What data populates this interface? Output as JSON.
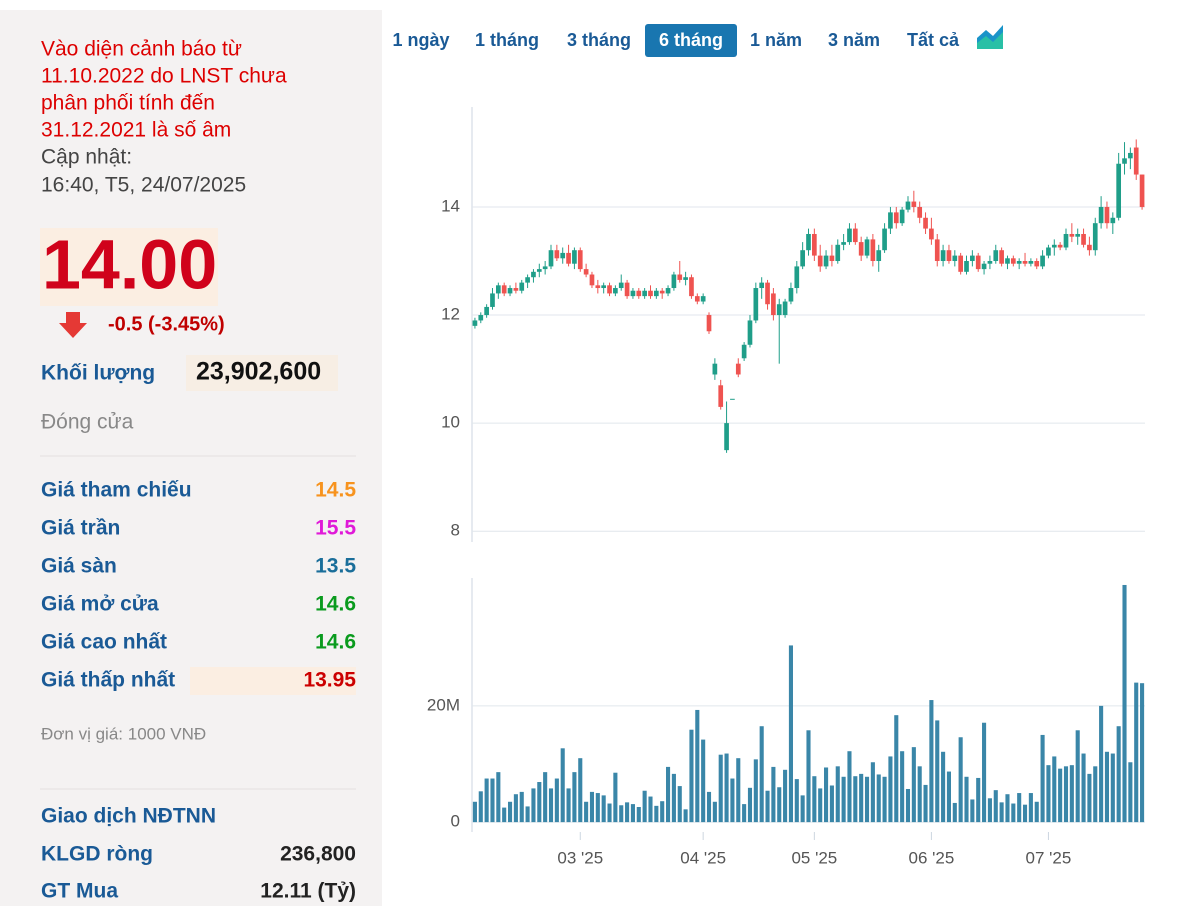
{
  "panel": {
    "warning_lines": [
      "Vào diện cảnh báo từ",
      "11.10.2022 do LNST chưa",
      "phân phối tính đến",
      "31.12.2021 là số âm"
    ],
    "update_label": "Cập nhật:",
    "update_time": "16:40, T5, 24/07/2025",
    "price": "14.00",
    "change": "-0.5 (-3.45%)",
    "volume_label": "Khối lượng",
    "volume_value": "23,902,600",
    "status": "Đóng cửa",
    "stats": [
      {
        "label": "Giá tham chiếu",
        "value": "14.5",
        "color": "#f7931e"
      },
      {
        "label": "Giá trần",
        "value": "15.5",
        "color": "#e01ad8"
      },
      {
        "label": "Giá sàn",
        "value": "13.5",
        "color": "#1a6e9a"
      },
      {
        "label": "Giá mở cửa",
        "value": "14.6",
        "color": "#0a9b1e"
      },
      {
        "label": "Giá cao nhất",
        "value": "14.6",
        "color": "#0a9b1e"
      },
      {
        "label": "Giá thấp nhất",
        "value": "13.95",
        "color": "#cc0000"
      }
    ],
    "unit_note": "Đơn vị giá: 1000 VNĐ",
    "foreign_title": "Giao dịch NĐTNN",
    "foreign_rows": [
      {
        "label": "KLGD ròng",
        "value": "236,800"
      },
      {
        "label": "GT Mua",
        "value": "12.11 (Tỷ)"
      }
    ]
  },
  "tabs": {
    "items": [
      "1 ngày",
      "1 tháng",
      "3 tháng",
      "6 tháng",
      "1 năm",
      "3 năm",
      "Tất cả"
    ],
    "active": "6 tháng"
  },
  "chart_data": {
    "type": "candlestick",
    "up_color": "#1f9e89",
    "down_color": "#ef5350",
    "grid": true,
    "xlim": [
      -0.5,
      114.5
    ],
    "xticks": [
      {
        "value": 18,
        "label": "03 '25"
      },
      {
        "value": 39,
        "label": "04 '25"
      },
      {
        "value": 58,
        "label": "05 '25"
      },
      {
        "value": 78,
        "label": "06 '25"
      },
      {
        "value": 98,
        "label": "07 '25"
      }
    ],
    "ylim": [
      7.8,
      15.85
    ],
    "yticks": [
      8,
      10,
      12,
      14
    ],
    "ohlc": [
      [
        11.8,
        11.95,
        11.75,
        11.9
      ],
      [
        11.9,
        12.05,
        11.85,
        12.0
      ],
      [
        12.0,
        12.2,
        11.95,
        12.15
      ],
      [
        12.15,
        12.5,
        12.1,
        12.4
      ],
      [
        12.4,
        12.6,
        12.3,
        12.55
      ],
      [
        12.55,
        12.6,
        12.35,
        12.4
      ],
      [
        12.4,
        12.55,
        12.35,
        12.5
      ],
      [
        12.5,
        12.6,
        12.4,
        12.45
      ],
      [
        12.45,
        12.65,
        12.4,
        12.6
      ],
      [
        12.6,
        12.75,
        12.5,
        12.7
      ],
      [
        12.7,
        12.85,
        12.6,
        12.8
      ],
      [
        12.8,
        12.95,
        12.7,
        12.85
      ],
      [
        12.85,
        13.0,
        12.75,
        12.9
      ],
      [
        12.9,
        13.3,
        12.85,
        13.2
      ],
      [
        13.2,
        13.3,
        13.0,
        13.05
      ],
      [
        13.05,
        13.25,
        12.95,
        13.15
      ],
      [
        13.15,
        13.3,
        12.9,
        12.95
      ],
      [
        12.95,
        13.25,
        12.85,
        13.2
      ],
      [
        13.2,
        13.25,
        12.8,
        12.85
      ],
      [
        12.85,
        12.95,
        12.7,
        12.75
      ],
      [
        12.75,
        12.8,
        12.5,
        12.55
      ],
      [
        12.55,
        12.65,
        12.4,
        12.5
      ],
      [
        12.5,
        12.6,
        12.4,
        12.55
      ],
      [
        12.55,
        12.6,
        12.35,
        12.4
      ],
      [
        12.4,
        12.55,
        12.35,
        12.5
      ],
      [
        12.5,
        12.75,
        12.45,
        12.6
      ],
      [
        12.6,
        12.65,
        12.3,
        12.35
      ],
      [
        12.35,
        12.5,
        12.3,
        12.45
      ],
      [
        12.45,
        12.5,
        12.3,
        12.35
      ],
      [
        12.35,
        12.5,
        12.3,
        12.45
      ],
      [
        12.45,
        12.55,
        12.3,
        12.35
      ],
      [
        12.35,
        12.5,
        12.3,
        12.45
      ],
      [
        12.45,
        12.5,
        12.3,
        12.4
      ],
      [
        12.4,
        12.55,
        12.35,
        12.5
      ],
      [
        12.5,
        12.8,
        12.45,
        12.75
      ],
      [
        12.75,
        13.0,
        12.6,
        12.65
      ],
      [
        12.65,
        12.8,
        12.55,
        12.7
      ],
      [
        12.7,
        12.75,
        12.3,
        12.35
      ],
      [
        12.35,
        12.4,
        12.2,
        12.25
      ],
      [
        12.25,
        12.4,
        12.2,
        12.35
      ],
      [
        12.0,
        12.05,
        11.65,
        11.7
      ],
      [
        10.9,
        11.2,
        10.8,
        11.1
      ],
      [
        10.7,
        10.8,
        10.25,
        10.3
      ],
      [
        9.5,
        10.4,
        9.45,
        10.0
      ],
      [
        10.45,
        10.45,
        10.45,
        10.45
      ],
      [
        11.1,
        11.2,
        10.85,
        10.9
      ],
      [
        11.2,
        11.5,
        11.15,
        11.45
      ],
      [
        11.45,
        12.0,
        11.4,
        11.9
      ],
      [
        11.9,
        12.6,
        11.85,
        12.5
      ],
      [
        12.5,
        12.7,
        12.3,
        12.6
      ],
      [
        12.6,
        12.65,
        12.1,
        12.2
      ],
      [
        12.4,
        12.5,
        11.9,
        12.0
      ],
      [
        12.0,
        12.3,
        11.1,
        12.2
      ],
      [
        12.0,
        12.3,
        11.95,
        12.25
      ],
      [
        12.25,
        12.6,
        12.2,
        12.5
      ],
      [
        12.5,
        13.0,
        12.4,
        12.9
      ],
      [
        12.9,
        13.35,
        12.85,
        13.2
      ],
      [
        13.2,
        13.6,
        13.1,
        13.5
      ],
      [
        13.5,
        13.6,
        13.0,
        13.1
      ],
      [
        13.1,
        13.3,
        12.8,
        12.9
      ],
      [
        12.9,
        13.2,
        12.85,
        13.1
      ],
      [
        13.1,
        13.3,
        12.9,
        13.0
      ],
      [
        13.0,
        13.4,
        12.95,
        13.3
      ],
      [
        13.3,
        13.5,
        13.2,
        13.35
      ],
      [
        13.35,
        13.7,
        13.3,
        13.6
      ],
      [
        13.6,
        13.7,
        13.3,
        13.35
      ],
      [
        13.35,
        13.45,
        13.0,
        13.1
      ],
      [
        13.1,
        13.45,
        13.05,
        13.4
      ],
      [
        13.4,
        13.5,
        12.9,
        13.0
      ],
      [
        13.0,
        13.3,
        12.8,
        13.2
      ],
      [
        13.2,
        13.7,
        13.15,
        13.6
      ],
      [
        13.6,
        14.0,
        13.5,
        13.9
      ],
      [
        13.9,
        14.0,
        13.6,
        13.7
      ],
      [
        13.7,
        14.0,
        13.65,
        13.95
      ],
      [
        13.95,
        14.2,
        13.9,
        14.1
      ],
      [
        14.1,
        14.3,
        13.9,
        14.0
      ],
      [
        14.0,
        14.1,
        13.7,
        13.8
      ],
      [
        13.8,
        13.9,
        13.5,
        13.6
      ],
      [
        13.6,
        13.8,
        13.3,
        13.4
      ],
      [
        13.4,
        13.5,
        12.9,
        13.0
      ],
      [
        13.0,
        13.3,
        12.9,
        13.2
      ],
      [
        13.2,
        13.3,
        12.95,
        13.0
      ],
      [
        13.0,
        13.2,
        12.9,
        13.1
      ],
      [
        13.1,
        13.15,
        12.75,
        12.8
      ],
      [
        12.8,
        13.1,
        12.75,
        13.0
      ],
      [
        13.0,
        13.2,
        12.9,
        13.1
      ],
      [
        13.1,
        13.15,
        12.8,
        12.85
      ],
      [
        12.85,
        13.0,
        12.75,
        12.95
      ],
      [
        12.95,
        13.1,
        12.85,
        13.0
      ],
      [
        13.0,
        13.3,
        12.95,
        13.2
      ],
      [
        13.2,
        13.25,
        12.9,
        12.95
      ],
      [
        12.95,
        13.1,
        12.85,
        13.05
      ],
      [
        13.05,
        13.1,
        12.9,
        12.95
      ],
      [
        12.95,
        13.05,
        12.85,
        13.0
      ],
      [
        13.0,
        13.15,
        12.9,
        12.95
      ],
      [
        12.95,
        13.05,
        12.9,
        13.0
      ],
      [
        13.0,
        13.05,
        12.85,
        12.9
      ],
      [
        12.9,
        13.2,
        12.85,
        13.1
      ],
      [
        13.1,
        13.3,
        13.05,
        13.25
      ],
      [
        13.25,
        13.4,
        13.1,
        13.3
      ],
      [
        13.3,
        13.35,
        13.2,
        13.25
      ],
      [
        13.25,
        13.6,
        13.2,
        13.5
      ],
      [
        13.5,
        13.7,
        13.35,
        13.45
      ],
      [
        13.45,
        13.6,
        13.3,
        13.5
      ],
      [
        13.5,
        13.6,
        13.25,
        13.3
      ],
      [
        13.3,
        13.45,
        13.1,
        13.2
      ],
      [
        13.2,
        13.8,
        13.1,
        13.7
      ],
      [
        13.7,
        14.2,
        13.6,
        14.0
      ],
      [
        14.0,
        14.1,
        13.6,
        13.7
      ],
      [
        13.7,
        13.9,
        13.5,
        13.8
      ],
      [
        13.8,
        15.0,
        13.75,
        14.8
      ],
      [
        14.8,
        15.2,
        14.6,
        14.9
      ],
      [
        14.9,
        15.1,
        14.7,
        15.0
      ],
      [
        15.1,
        15.25,
        14.5,
        14.6
      ],
      [
        14.6,
        14.6,
        13.95,
        14.0
      ]
    ],
    "volume": {
      "color": "#3a86a8",
      "ylim": [
        -1700000,
        42000000
      ],
      "yticks": [
        0,
        {
          "value": 20000000,
          "label": "20M"
        }
      ],
      "values": [
        3500000,
        5300000,
        7500000,
        7500000,
        8600000,
        2500000,
        3500000,
        4800000,
        5200000,
        2700000,
        5800000,
        6900000,
        8600000,
        5800000,
        7500000,
        12700000,
        5800000,
        8600000,
        11000000,
        3500000,
        5200000,
        5000000,
        4600000,
        3200000,
        8500000,
        2900000,
        3400000,
        3100000,
        2600000,
        5400000,
        4400000,
        2800000,
        3600000,
        9500000,
        8300000,
        6200000,
        2200000,
        15900000,
        19300000,
        14200000,
        5200000,
        3500000,
        11600000,
        11800000,
        7500000,
        11000000,
        3100000,
        5900000,
        10800000,
        16500000,
        5400000,
        9500000,
        6000000,
        9000000,
        30400000,
        7400000,
        4600000,
        15800000,
        7900000,
        5800000,
        9400000,
        6300000,
        9600000,
        7800000,
        12200000,
        7900000,
        8300000,
        7800000,
        10300000,
        8200000,
        7800000,
        11300000,
        18400000,
        12200000,
        5700000,
        12900000,
        9600000,
        6400000,
        21000000,
        17500000,
        12100000,
        8700000,
        3300000,
        14600000,
        7800000,
        3900000,
        7600000,
        17100000,
        4100000,
        5500000,
        3400000,
        4800000,
        3200000,
        5000000,
        3000000,
        5000000,
        3500000,
        15000000,
        9800000,
        11300000,
        9200000,
        9600000,
        9800000,
        15800000,
        11800000,
        8300000,
        9600000,
        20000000,
        12100000,
        11800000,
        16500000,
        40800000,
        10300000,
        24000000,
        23902600
      ]
    }
  }
}
